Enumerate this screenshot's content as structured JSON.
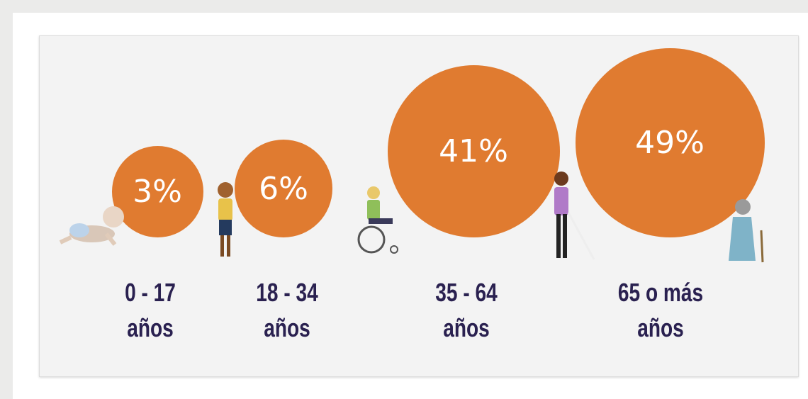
{
  "chart_data": {
    "type": "bubble",
    "categories": [
      "0 - 17 años",
      "18 - 34 años",
      "35 - 64 años",
      "65 o más años"
    ],
    "values": [
      3,
      6,
      41,
      49
    ],
    "value_labels": [
      "3%",
      "6%",
      "41%",
      "49%"
    ],
    "color": "#e07b30"
  }
}
